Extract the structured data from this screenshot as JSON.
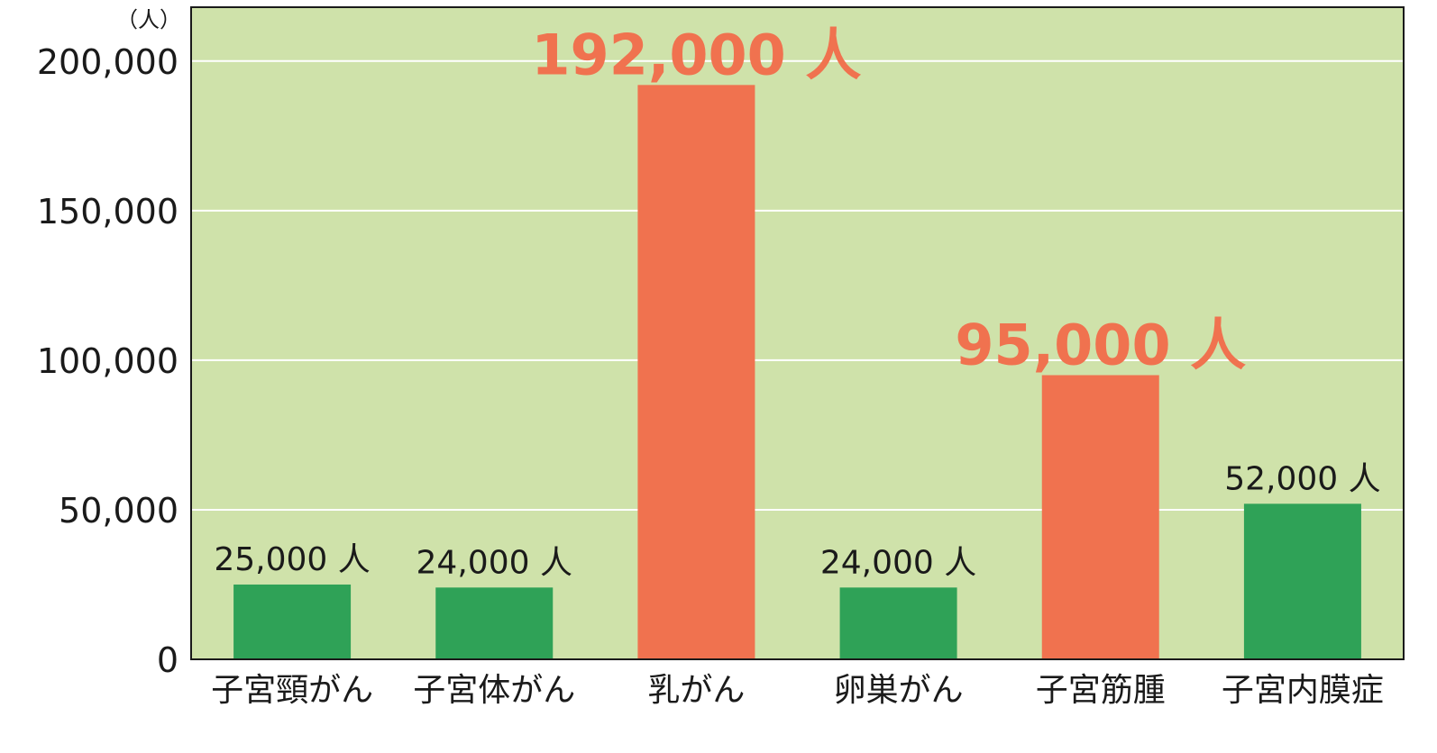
{
  "chart_data": {
    "type": "bar",
    "y_unit_label": "（人）",
    "categories": [
      "子宮頸がん",
      "子宮体がん",
      "乳がん",
      "卵巣がん",
      "子宮筋腫",
      "子宮内膜症"
    ],
    "values": [
      25000,
      24000,
      192000,
      24000,
      95000,
      52000
    ],
    "data_labels": [
      "25,000 人",
      "24,000 人",
      "192,000 人",
      "24,000 人",
      "95,000 人",
      "52,000 人"
    ],
    "highlighted": [
      false,
      false,
      true,
      false,
      true,
      false
    ],
    "y_ticks": [
      0,
      50000,
      100000,
      150000,
      200000
    ],
    "y_tick_labels": [
      "0",
      "50,000",
      "100,000",
      "150,000",
      "200,000"
    ],
    "ylim": [
      0,
      218000
    ],
    "grid": true,
    "title": "",
    "xlabel": "",
    "ylabel": "",
    "colors": {
      "plot_background": "#cfe2aa",
      "bar_default": "#2fa257",
      "bar_highlight": "#f0724f",
      "label_highlight": "#f0724f",
      "text": "#1a1a1a",
      "gridline": "#ffffff",
      "axis": "#1a1a1a"
    }
  }
}
